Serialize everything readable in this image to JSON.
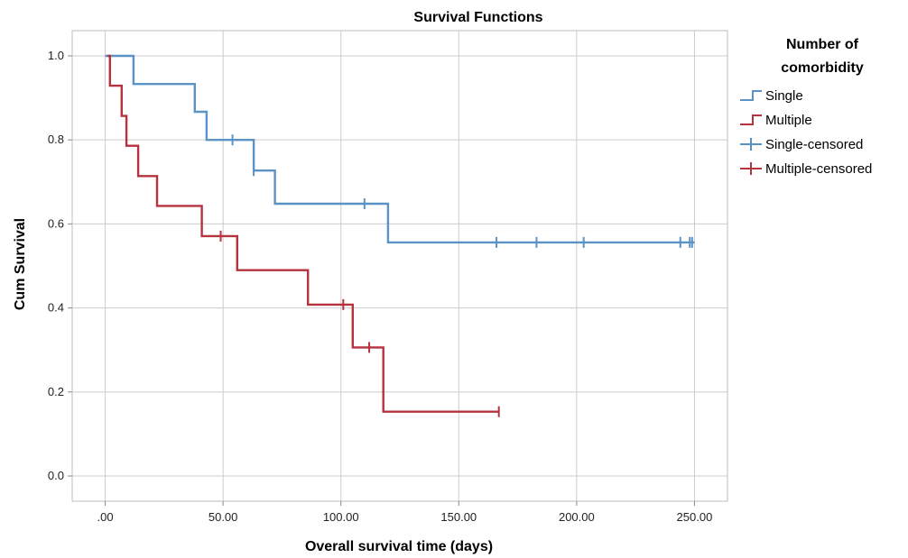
{
  "chart_data": {
    "type": "line",
    "title": "Survival Functions",
    "xlabel": "Overall survival time (days)",
    "ylabel": "Cum Survival",
    "x_ticks": [
      ".00",
      "50.00",
      "100.00",
      "150.00",
      "200.00",
      "250.00"
    ],
    "x_tick_values": [
      0,
      50,
      100,
      150,
      200,
      250
    ],
    "y_ticks": [
      "0.0",
      "0.2",
      "0.4",
      "0.6",
      "0.8",
      "1.0"
    ],
    "y_tick_values": [
      0,
      0.2,
      0.4,
      0.6,
      0.8,
      1.0
    ],
    "xlim": [
      -14,
      264
    ],
    "ylim": [
      -0.06,
      1.06
    ],
    "grid": true,
    "legend": {
      "title_lines": [
        "Number of",
        "comorbidity"
      ],
      "placement": "right",
      "entries": [
        "Single",
        "Multiple",
        "Single-censored",
        "Multiple-censored"
      ]
    },
    "series": [
      {
        "name": "Single",
        "color": "#5b93c6",
        "step_points": [
          [
            0,
            1.0
          ],
          [
            12,
            1.0
          ],
          [
            12,
            0.933
          ],
          [
            38,
            0.933
          ],
          [
            38,
            0.867
          ],
          [
            43,
            0.867
          ],
          [
            43,
            0.8
          ],
          [
            63,
            0.8
          ],
          [
            63,
            0.727
          ],
          [
            72,
            0.727
          ],
          [
            72,
            0.648
          ],
          [
            120,
            0.648
          ],
          [
            120,
            0.556
          ],
          [
            250,
            0.556
          ]
        ],
        "censored": [
          [
            54,
            0.8
          ],
          [
            63,
            0.727
          ],
          [
            110,
            0.648
          ],
          [
            166,
            0.556
          ],
          [
            183,
            0.556
          ],
          [
            203,
            0.556
          ],
          [
            244,
            0.556
          ],
          [
            248,
            0.556
          ],
          [
            249,
            0.556
          ]
        ]
      },
      {
        "name": "Multiple",
        "color": "#b5323e",
        "step_points": [
          [
            1,
            1.0
          ],
          [
            2,
            1.0
          ],
          [
            2,
            0.929
          ],
          [
            7,
            0.929
          ],
          [
            7,
            0.857
          ],
          [
            9,
            0.857
          ],
          [
            9,
            0.786
          ],
          [
            14,
            0.786
          ],
          [
            14,
            0.714
          ],
          [
            22,
            0.714
          ],
          [
            22,
            0.643
          ],
          [
            41,
            0.643
          ],
          [
            41,
            0.571
          ],
          [
            56,
            0.571
          ],
          [
            56,
            0.49
          ],
          [
            86,
            0.49
          ],
          [
            86,
            0.408
          ],
          [
            105,
            0.408
          ],
          [
            105,
            0.306
          ],
          [
            118,
            0.306
          ],
          [
            118,
            0.153
          ],
          [
            167,
            0.153
          ]
        ],
        "censored": [
          [
            49,
            0.571
          ],
          [
            101,
            0.408
          ],
          [
            112,
            0.306
          ],
          [
            167,
            0.153
          ]
        ]
      }
    ]
  }
}
